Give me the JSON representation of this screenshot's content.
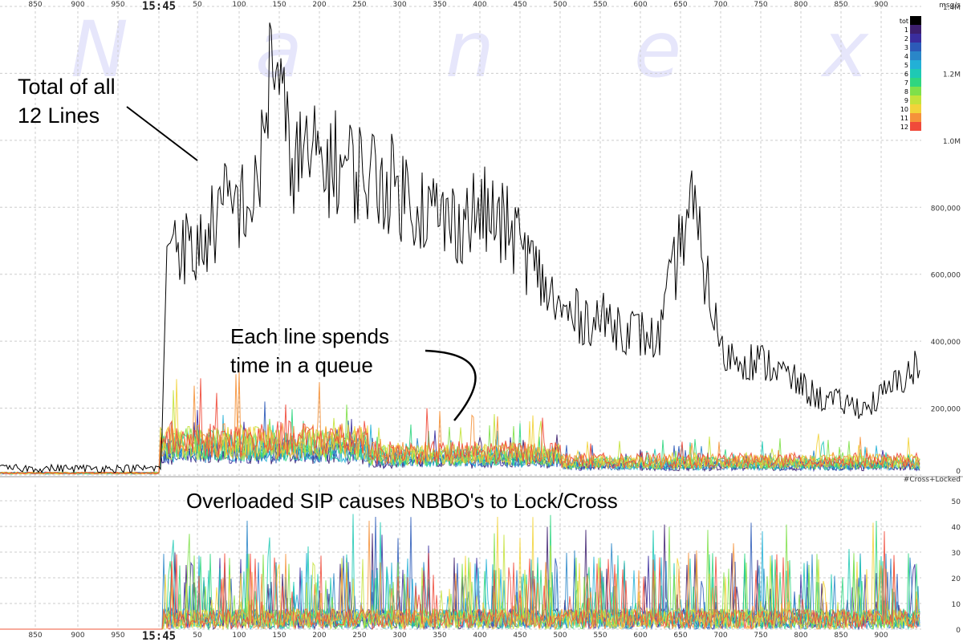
{
  "chart_data": [
    {
      "type": "line",
      "title": "",
      "xlabel": "",
      "ylabel": "msg/s",
      "ylim": [
        0,
        1400000
      ],
      "yticks": [
        {
          "value": 0,
          "label": "0"
        },
        {
          "value": 200000,
          "label": "200,000"
        },
        {
          "value": 400000,
          "label": "400,000"
        },
        {
          "value": 600000,
          "label": "600,000"
        },
        {
          "value": 800000,
          "label": "800,000"
        },
        {
          "value": 1000000,
          "label": "1.0M"
        },
        {
          "value": 1200000,
          "label": "1.2M"
        },
        {
          "value": 1400000,
          "label": "1.4M"
        }
      ],
      "xticks": [
        "850",
        "900",
        "950",
        "15:45",
        "50",
        "100",
        "150",
        "200",
        "250",
        "300",
        "350",
        "400",
        "450",
        "500",
        "550",
        "600",
        "650",
        "700",
        "750",
        "800",
        "850",
        "900"
      ],
      "legend": {
        "placement": "top-right",
        "entries": [
          {
            "label": "tot",
            "color": "#000000"
          },
          {
            "label": "1",
            "color": "#3d1f6e"
          },
          {
            "label": "2",
            "color": "#3a2d9e"
          },
          {
            "label": "3",
            "color": "#2c5ab8"
          },
          {
            "label": "4",
            "color": "#2a86c8"
          },
          {
            "label": "5",
            "color": "#22b0d6"
          },
          {
            "label": "6",
            "color": "#1ec9b4"
          },
          {
            "label": "7",
            "color": "#2fd680"
          },
          {
            "label": "8",
            "color": "#7fe04a"
          },
          {
            "label": "9",
            "color": "#c4e23a"
          },
          {
            "label": "10",
            "color": "#f2d33a"
          },
          {
            "label": "11",
            "color": "#f5923a"
          },
          {
            "label": "12",
            "color": "#f04a3a"
          }
        ]
      },
      "series_total_profile": {
        "name": "tot",
        "x": [
          0,
          200,
          210,
          240,
          280,
          320,
          340,
          360,
          420,
          480,
          560,
          600,
          640,
          700,
          760,
          820,
          860,
          900,
          960,
          1020,
          1080,
          1140
        ],
        "y": [
          20000,
          20000,
          750000,
          650000,
          800000,
          820000,
          1300000,
          950000,
          930000,
          880000,
          750000,
          790000,
          720000,
          480000,
          460000,
          400000,
          820000,
          360000,
          330000,
          230000,
          200000,
          320000
        ]
      },
      "annotations": [
        {
          "id": "total",
          "lines": [
            "Total of all",
            "12 Lines"
          ]
        },
        {
          "id": "queue",
          "lines": [
            "Each line spends",
            "time in a queue"
          ]
        }
      ]
    },
    {
      "type": "line",
      "title": "",
      "ylabel": "#Cross+Locked",
      "ylim": [
        0,
        55
      ],
      "yticks": [
        {
          "value": 0,
          "label": "0"
        },
        {
          "value": 10,
          "label": "10"
        },
        {
          "value": 20,
          "label": "20"
        },
        {
          "value": 30,
          "label": "30"
        },
        {
          "value": 40,
          "label": "40"
        },
        {
          "value": 50,
          "label": "50"
        }
      ],
      "xticks": [
        "850",
        "900",
        "950",
        "15:45",
        "50",
        "100",
        "150",
        "200",
        "250",
        "300",
        "350",
        "400",
        "450",
        "500",
        "550",
        "600",
        "650",
        "700",
        "750",
        "800",
        "850",
        "900"
      ],
      "annotations": [
        {
          "id": "nbbo",
          "lines": [
            "Overloaded SIP causes NBBO's to Lock/Cross"
          ]
        }
      ]
    }
  ],
  "watermark": [
    "N",
    "a",
    "n",
    "e",
    "x"
  ]
}
